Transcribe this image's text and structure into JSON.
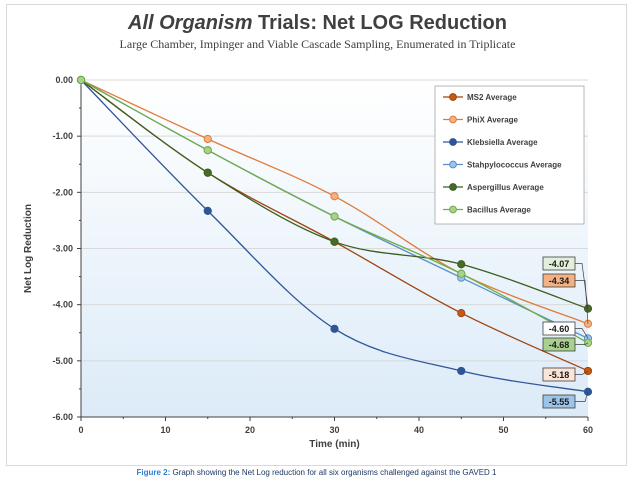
{
  "chart_data": {
    "type": "line",
    "title_italic": "All Organism",
    "title_rest": " Trials: Net LOG Reduction",
    "subtitle": "Large Chamber, Impinger and Viable Cascade Sampling, Enumerated in Triplicate",
    "xlabel": "Time (min)",
    "ylabel": "Net Log Reduction",
    "xlim": [
      0,
      60
    ],
    "ylim": [
      -6,
      0
    ],
    "x_ticks": [
      0,
      10,
      20,
      30,
      40,
      50,
      60
    ],
    "x_tick_labels": [
      "0",
      "10",
      "20",
      "30",
      "40",
      "50",
      "60"
    ],
    "y_ticks": [
      0,
      -1,
      -2,
      -3,
      -4,
      -5,
      -6
    ],
    "y_tick_labels": [
      "0.00",
      "-1.00",
      "-2.00",
      "-3.00",
      "-4.00",
      "-5.00",
      "-6.00"
    ],
    "grid": "horizontal",
    "legend_position": "top-right",
    "x": [
      0,
      15,
      30,
      45,
      60
    ],
    "series": [
      {
        "name": "MS2 Average",
        "color": "#a0440f",
        "fill": "#c55a11",
        "values": [
          0,
          -1.65,
          -2.88,
          -4.15,
          -5.18
        ]
      },
      {
        "name": "PhiX Average",
        "color": "#e07b39",
        "fill": "#f4b183",
        "values": [
          0,
          -1.05,
          -2.07,
          -3.45,
          -4.34
        ]
      },
      {
        "name": "Klebsiella Average",
        "color": "#2e5597",
        "fill": "#2f5597",
        "values": [
          0,
          -2.33,
          -4.43,
          -5.18,
          -5.55
        ]
      },
      {
        "name": "Stahpylococcus Average",
        "color": "#5b8fc9",
        "fill": "#9dc3e6",
        "values": [
          0,
          -1.25,
          -2.43,
          -3.52,
          -4.6
        ]
      },
      {
        "name": "Aspergillus Average",
        "color": "#3b5e1f",
        "fill": "#476b2a",
        "values": [
          0,
          -1.65,
          -2.88,
          -3.28,
          -4.07
        ]
      },
      {
        "name": "Bacillus Average",
        "color": "#70ad47",
        "fill": "#a9d18e",
        "values": [
          0,
          -1.25,
          -2.43,
          -3.45,
          -4.68
        ]
      }
    ],
    "callouts": [
      {
        "label": "-4.07",
        "series": 4,
        "fill": "#e2efda"
      },
      {
        "label": "-4.34",
        "series": 1,
        "fill": "#f4b183"
      },
      {
        "label": "-4.60",
        "series": 3,
        "fill": "#ffffff"
      },
      {
        "label": "-4.68",
        "series": 5,
        "fill": "#a9d18e"
      },
      {
        "label": "-5.18",
        "series": 0,
        "fill": "#fce4d6"
      },
      {
        "label": "-5.55",
        "series": 2,
        "fill": "#9dc3e6"
      }
    ]
  },
  "caption": {
    "label": "Figure 2:",
    "text": " Graph showing the Net Log reduction for all six organisms challenged against the GAVED 1"
  }
}
